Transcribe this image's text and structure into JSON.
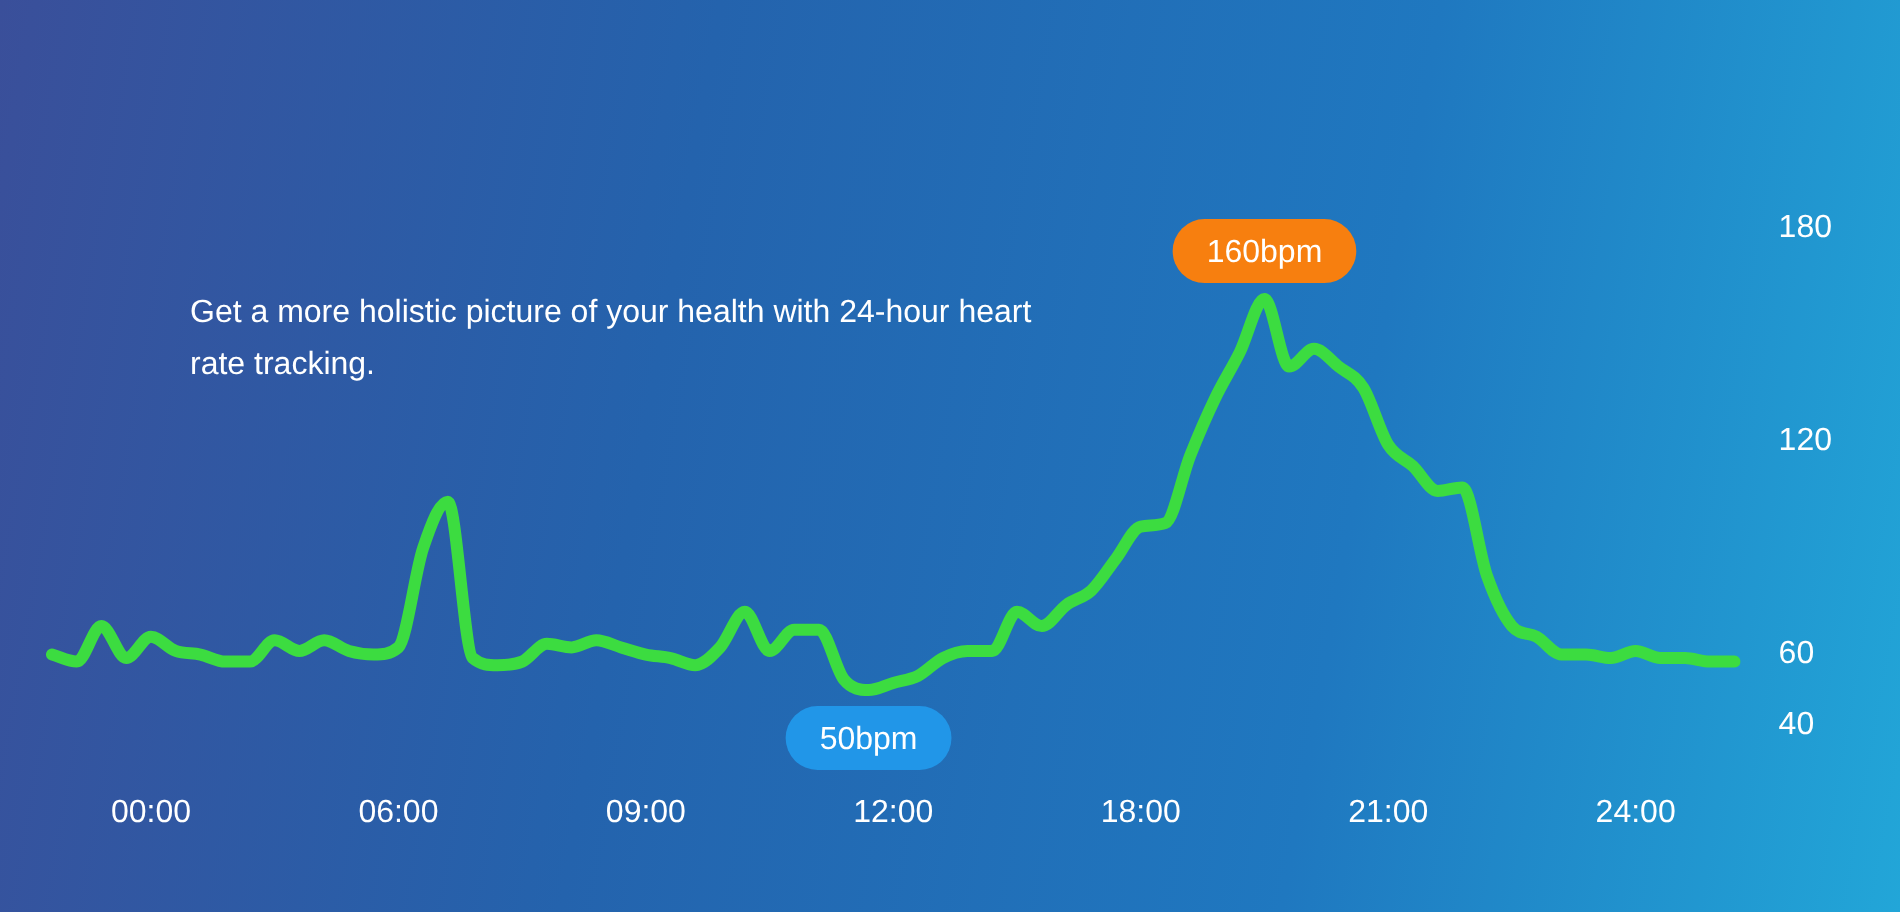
{
  "chart_data": {
    "type": "line",
    "categories": [
      null,
      null,
      null,
      null,
      "00:00",
      null,
      null,
      null,
      null,
      null,
      null,
      null,
      null,
      null,
      "06:00",
      null,
      null,
      null,
      null,
      null,
      null,
      null,
      null,
      null,
      "09:00",
      null,
      null,
      null,
      null,
      null,
      null,
      null,
      null,
      null,
      "12:00",
      null,
      null,
      null,
      null,
      null,
      null,
      null,
      null,
      null,
      "18:00",
      null,
      null,
      null,
      null,
      null,
      null,
      null,
      null,
      null,
      "21:00",
      null,
      null,
      null,
      null,
      null,
      null,
      null,
      null,
      null,
      "24:00",
      null,
      null,
      null,
      null
    ],
    "series": [
      {
        "color": "#3cdc40",
        "values": [
          60,
          58,
          68,
          59,
          65,
          61,
          60,
          58,
          58,
          64,
          61,
          64,
          61,
          60,
          62,
          90,
          103,
          59,
          57,
          58,
          63,
          62,
          64,
          62,
          60,
          59,
          57,
          62,
          72,
          61,
          67,
          67,
          53,
          50,
          52,
          54,
          59,
          61,
          61,
          72,
          68,
          74,
          78,
          87,
          96,
          97,
          116,
          132,
          145,
          160,
          141,
          146,
          141,
          135,
          119,
          113,
          106,
          107,
          82,
          68,
          65,
          60,
          60,
          59,
          61,
          59,
          59,
          58,
          58
        ],
        "name": null
      }
    ],
    "ylim": [
      40,
      180
    ],
    "yticks": [
      40,
      60,
      120,
      180
    ],
    "annotations": [
      "Get a more holistic picture of your health with 24-hour heart rate tracking.",
      {
        "text": "160bpm",
        "y": 160
      },
      {
        "text": "50bpm",
        "y": 50
      }
    ],
    "grid": false,
    "legend": false,
    "marker": "none",
    "line_style": "solid"
  }
}
